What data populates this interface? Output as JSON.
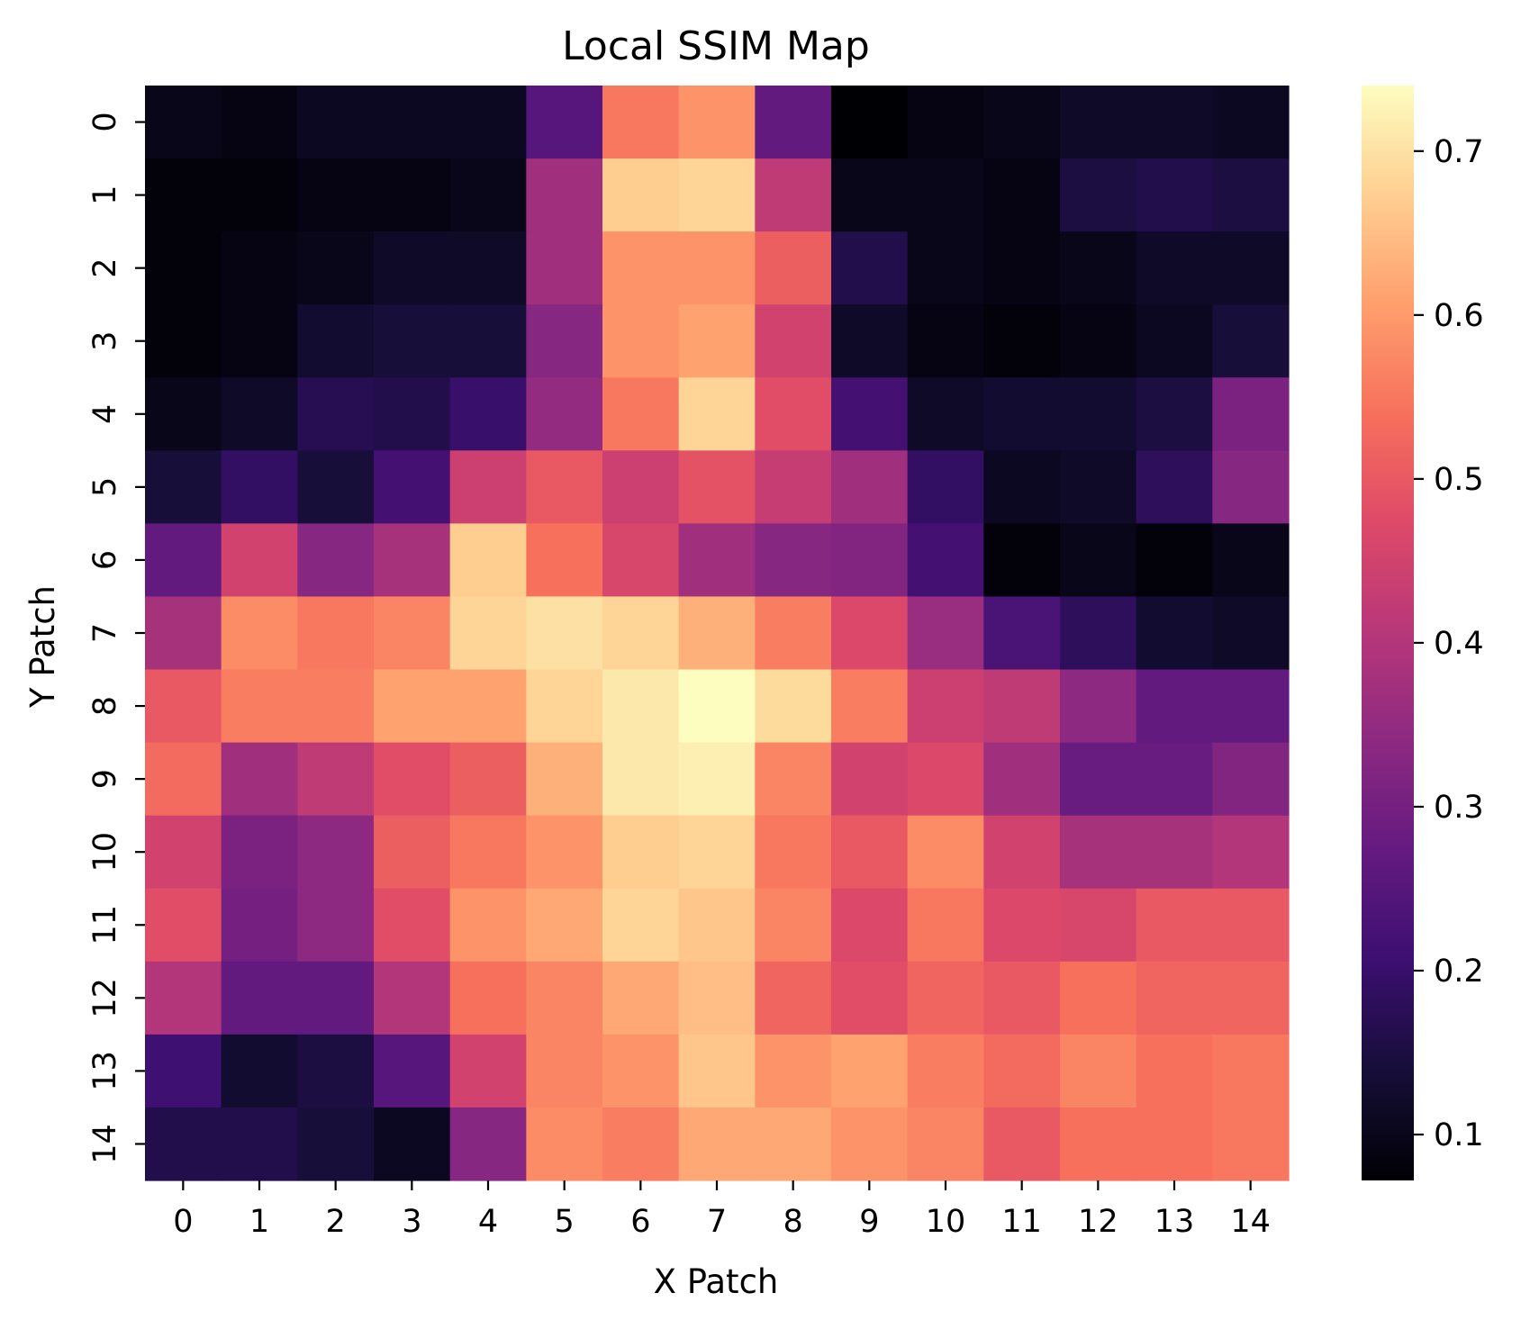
{
  "chart_data": {
    "type": "heatmap",
    "title": "Local SSIM Map",
    "xlabel": "X Patch",
    "ylabel": "Y Patch",
    "x_categories": [
      "0",
      "1",
      "2",
      "3",
      "4",
      "5",
      "6",
      "7",
      "8",
      "9",
      "10",
      "11",
      "12",
      "13",
      "14"
    ],
    "y_categories": [
      "0",
      "1",
      "2",
      "3",
      "4",
      "5",
      "6",
      "7",
      "8",
      "9",
      "10",
      "11",
      "12",
      "13",
      "14"
    ],
    "colormap": "magma",
    "vmin": 0.072,
    "vmax": 0.74,
    "colorbar_ticks": [
      "0.1",
      "0.2",
      "0.3",
      "0.4",
      "0.5",
      "0.6",
      "0.7"
    ],
    "colorbar_tick_values": [
      0.1,
      0.2,
      0.3,
      0.4,
      0.5,
      0.6,
      0.7
    ],
    "values": [
      [
        0.1,
        0.09,
        0.11,
        0.11,
        0.11,
        0.25,
        0.55,
        0.59,
        0.27,
        0.07,
        0.09,
        0.1,
        0.12,
        0.12,
        0.11
      ],
      [
        0.08,
        0.08,
        0.09,
        0.09,
        0.1,
        0.37,
        0.67,
        0.68,
        0.42,
        0.1,
        0.1,
        0.09,
        0.15,
        0.16,
        0.15
      ],
      [
        0.08,
        0.09,
        0.1,
        0.12,
        0.12,
        0.37,
        0.59,
        0.59,
        0.51,
        0.16,
        0.1,
        0.09,
        0.1,
        0.12,
        0.12
      ],
      [
        0.08,
        0.09,
        0.13,
        0.14,
        0.14,
        0.33,
        0.59,
        0.61,
        0.45,
        0.12,
        0.09,
        0.08,
        0.09,
        0.11,
        0.14
      ],
      [
        0.1,
        0.12,
        0.17,
        0.16,
        0.2,
        0.35,
        0.55,
        0.68,
        0.48,
        0.22,
        0.12,
        0.13,
        0.13,
        0.15,
        0.31
      ],
      [
        0.14,
        0.19,
        0.14,
        0.22,
        0.44,
        0.5,
        0.44,
        0.49,
        0.43,
        0.37,
        0.19,
        0.11,
        0.12,
        0.18,
        0.33
      ],
      [
        0.27,
        0.45,
        0.33,
        0.38,
        0.67,
        0.54,
        0.46,
        0.37,
        0.33,
        0.32,
        0.22,
        0.08,
        0.1,
        0.08,
        0.1
      ],
      [
        0.38,
        0.58,
        0.55,
        0.57,
        0.68,
        0.7,
        0.68,
        0.63,
        0.56,
        0.47,
        0.36,
        0.23,
        0.18,
        0.13,
        0.12
      ],
      [
        0.5,
        0.56,
        0.56,
        0.61,
        0.61,
        0.68,
        0.71,
        0.74,
        0.69,
        0.56,
        0.44,
        0.42,
        0.34,
        0.27,
        0.27
      ],
      [
        0.53,
        0.37,
        0.42,
        0.48,
        0.51,
        0.63,
        0.71,
        0.72,
        0.57,
        0.45,
        0.47,
        0.37,
        0.28,
        0.28,
        0.32
      ],
      [
        0.45,
        0.31,
        0.34,
        0.51,
        0.55,
        0.59,
        0.67,
        0.68,
        0.55,
        0.5,
        0.58,
        0.45,
        0.38,
        0.38,
        0.4
      ],
      [
        0.48,
        0.3,
        0.34,
        0.48,
        0.59,
        0.62,
        0.68,
        0.66,
        0.57,
        0.47,
        0.55,
        0.47,
        0.46,
        0.5,
        0.5
      ],
      [
        0.4,
        0.27,
        0.27,
        0.4,
        0.54,
        0.57,
        0.62,
        0.65,
        0.52,
        0.48,
        0.52,
        0.5,
        0.54,
        0.52,
        0.52
      ],
      [
        0.21,
        0.13,
        0.15,
        0.25,
        0.45,
        0.57,
        0.59,
        0.66,
        0.59,
        0.61,
        0.56,
        0.53,
        0.57,
        0.54,
        0.55
      ],
      [
        0.16,
        0.16,
        0.14,
        0.11,
        0.33,
        0.58,
        0.56,
        0.62,
        0.62,
        0.59,
        0.57,
        0.5,
        0.54,
        0.54,
        0.55
      ]
    ]
  }
}
